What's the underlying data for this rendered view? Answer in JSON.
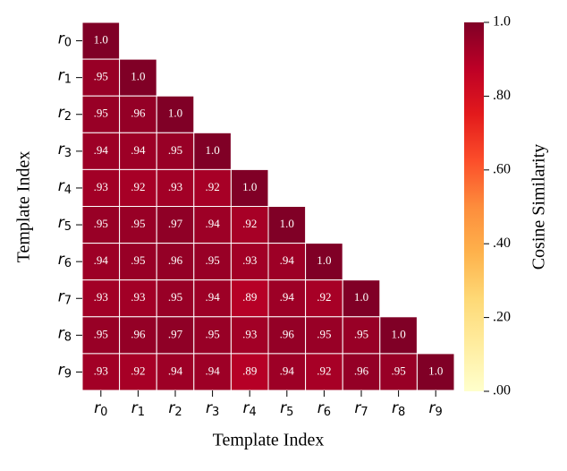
{
  "chart_data": {
    "type": "heatmap",
    "x_label": "Template Index",
    "y_label": "Template Index",
    "colorbar_label": "Cosine Similarity",
    "colormap": "YlOrRd",
    "x_categories": [
      "r0",
      "r1",
      "r2",
      "r3",
      "r4",
      "r5",
      "r6",
      "r7",
      "r8",
      "r9"
    ],
    "y_categories": [
      "r0",
      "r1",
      "r2",
      "r3",
      "r4",
      "r5",
      "r6",
      "r7",
      "r8",
      "r9"
    ],
    "values": [
      [
        1.0,
        null,
        null,
        null,
        null,
        null,
        null,
        null,
        null,
        null
      ],
      [
        0.95,
        1.0,
        null,
        null,
        null,
        null,
        null,
        null,
        null,
        null
      ],
      [
        0.95,
        0.96,
        1.0,
        null,
        null,
        null,
        null,
        null,
        null,
        null
      ],
      [
        0.94,
        0.94,
        0.95,
        1.0,
        null,
        null,
        null,
        null,
        null,
        null
      ],
      [
        0.93,
        0.92,
        0.93,
        0.92,
        1.0,
        null,
        null,
        null,
        null,
        null
      ],
      [
        0.95,
        0.95,
        0.97,
        0.94,
        0.92,
        1.0,
        null,
        null,
        null,
        null
      ],
      [
        0.94,
        0.95,
        0.96,
        0.95,
        0.93,
        0.94,
        1.0,
        null,
        null,
        null
      ],
      [
        0.93,
        0.93,
        0.95,
        0.94,
        0.89,
        0.94,
        0.92,
        1.0,
        null,
        null
      ],
      [
        0.95,
        0.96,
        0.97,
        0.95,
        0.93,
        0.96,
        0.95,
        0.95,
        1.0,
        null
      ],
      [
        0.93,
        0.92,
        0.94,
        0.94,
        0.89,
        0.94,
        0.92,
        0.96,
        0.95,
        1.0
      ]
    ],
    "value_labels": [
      [
        "1.0",
        null,
        null,
        null,
        null,
        null,
        null,
        null,
        null,
        null
      ],
      [
        ".95",
        "1.0",
        null,
        null,
        null,
        null,
        null,
        null,
        null,
        null
      ],
      [
        ".95",
        ".96",
        "1.0",
        null,
        null,
        null,
        null,
        null,
        null,
        null
      ],
      [
        ".94",
        ".94",
        ".95",
        "1.0",
        null,
        null,
        null,
        null,
        null,
        null
      ],
      [
        ".93",
        ".92",
        ".93",
        ".92",
        "1.0",
        null,
        null,
        null,
        null,
        null
      ],
      [
        ".95",
        ".95",
        ".97",
        ".94",
        ".92",
        "1.0",
        null,
        null,
        null,
        null
      ],
      [
        ".94",
        ".95",
        ".96",
        ".95",
        ".93",
        ".94",
        "1.0",
        null,
        null,
        null
      ],
      [
        ".93",
        ".93",
        ".95",
        ".94",
        ".89",
        ".94",
        ".92",
        "1.0",
        null,
        null
      ],
      [
        ".95",
        ".96",
        ".97",
        ".95",
        ".93",
        ".96",
        ".95",
        ".95",
        "1.0",
        null
      ],
      [
        ".93",
        ".92",
        ".94",
        ".94",
        ".89",
        ".94",
        ".92",
        ".96",
        ".95",
        "1.0"
      ]
    ],
    "clim": [
      0,
      1
    ],
    "cticks": [
      {
        "value": 0,
        "label": ".00"
      },
      {
        "value": 0.2,
        "label": ".20"
      },
      {
        "value": 0.4,
        "label": ".40"
      },
      {
        "value": 0.6,
        "label": ".60"
      },
      {
        "value": 0.8,
        "label": ".80"
      },
      {
        "value": 1,
        "label": "1.0"
      }
    ]
  }
}
